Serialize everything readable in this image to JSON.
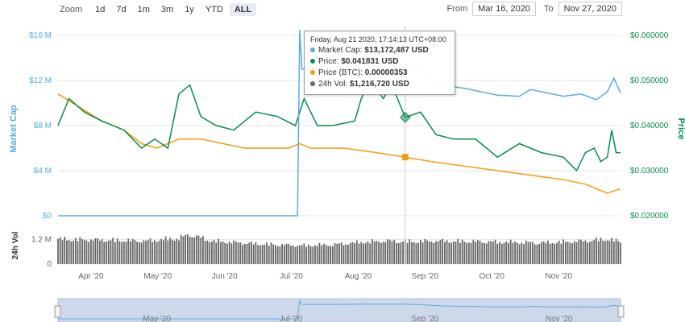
{
  "zoom": {
    "label": "Zoom",
    "buttons": [
      "1d",
      "7d",
      "1m",
      "3m",
      "1y",
      "YTD",
      "ALL"
    ],
    "active": "ALL"
  },
  "range": {
    "from_label": "From",
    "from": "Mar 16, 2020",
    "to_label": "To",
    "to": "Nov 27, 2020"
  },
  "tooltip": {
    "date": "Friday, Aug 21 2020, 17:14:13 UTC+08:00",
    "rows": [
      {
        "label": "Market Cap:",
        "value": "$13,172,487 USD",
        "color": "#5aabe0"
      },
      {
        "label": "Price:",
        "value": "$0.041831 USD",
        "color": "#0b8a4e"
      },
      {
        "label": "Price (BTC):",
        "value": "0.00000353",
        "color": "#f29c12"
      },
      {
        "label": "24h Vol:",
        "value": "$1,216,720 USD",
        "color": "#666666"
      }
    ]
  },
  "colors": {
    "market_cap": "#5aabe0",
    "price": "#0b8a4e",
    "price_btc": "#f29c12",
    "volume": "#666666",
    "navigator_fill": "#ced8eb"
  },
  "chart_data": {
    "type": "line",
    "x_labels": [
      "Apr '20",
      "May '20",
      "Jun '20",
      "Jul '20",
      "Aug '20",
      "Sep '20",
      "Oct '20",
      "Nov '20"
    ],
    "navigator_labels": [
      "May '20",
      "Jul '20",
      "Sep '20",
      "Nov '20"
    ],
    "left_axis": {
      "label": "Market Cap",
      "ticks": [
        "$0",
        "$4 M",
        "$8 M",
        "$12 M",
        "$16 M"
      ],
      "range": [
        0,
        16000000
      ]
    },
    "right_axis": {
      "label": "Price",
      "ticks": [
        "$0.020000",
        "$0.030000",
        "$0.040000",
        "$0.050000",
        "$0.060000"
      ],
      "range": [
        0.02,
        0.06
      ]
    },
    "volume_axis": {
      "label": "24h Vol",
      "ticks": [
        "0",
        "0.6 M",
        "1.2 M"
      ],
      "range": [
        0,
        1800000
      ]
    },
    "x_range_days": [
      0,
      256
    ],
    "series": [
      {
        "name": "Market Cap",
        "points": [
          [
            0,
            0
          ],
          [
            100,
            0
          ],
          [
            109,
            0
          ],
          [
            110,
            16500000
          ],
          [
            111,
            13000000
          ],
          [
            125,
            13000000
          ],
          [
            140,
            13200000
          ],
          [
            158,
            13172487
          ],
          [
            165,
            12800000
          ],
          [
            175,
            11600000
          ],
          [
            185,
            11300000
          ],
          [
            200,
            10700000
          ],
          [
            210,
            10600000
          ],
          [
            215,
            11200000
          ],
          [
            230,
            10600000
          ],
          [
            238,
            10800000
          ],
          [
            245,
            10300000
          ],
          [
            250,
            11000000
          ],
          [
            253,
            12200000
          ],
          [
            256,
            10900000
          ]
        ]
      },
      {
        "name": "Price",
        "points": [
          [
            0,
            0.04
          ],
          [
            5,
            0.046
          ],
          [
            12,
            0.043
          ],
          [
            20,
            0.041
          ],
          [
            30,
            0.039
          ],
          [
            38,
            0.035
          ],
          [
            44,
            0.037
          ],
          [
            50,
            0.035
          ],
          [
            55,
            0.047
          ],
          [
            60,
            0.049
          ],
          [
            65,
            0.042
          ],
          [
            72,
            0.04
          ],
          [
            80,
            0.039
          ],
          [
            90,
            0.043
          ],
          [
            100,
            0.042
          ],
          [
            108,
            0.04
          ],
          [
            112,
            0.046
          ],
          [
            118,
            0.04
          ],
          [
            125,
            0.04
          ],
          [
            135,
            0.041
          ],
          [
            138,
            0.046
          ],
          [
            142,
            0.05
          ],
          [
            148,
            0.046
          ],
          [
            152,
            0.049
          ],
          [
            158,
            0.0418
          ],
          [
            165,
            0.043
          ],
          [
            172,
            0.038
          ],
          [
            180,
            0.037
          ],
          [
            190,
            0.037
          ],
          [
            200,
            0.033
          ],
          [
            210,
            0.036
          ],
          [
            220,
            0.034
          ],
          [
            230,
            0.033
          ],
          [
            236,
            0.03
          ],
          [
            240,
            0.034
          ],
          [
            244,
            0.035
          ],
          [
            247,
            0.032
          ],
          [
            250,
            0.033
          ],
          [
            252,
            0.039
          ],
          [
            254,
            0.034
          ],
          [
            256,
            0.034
          ]
        ]
      },
      {
        "name": "Price (BTC)",
        "points": [
          [
            0,
            0.047
          ],
          [
            10,
            0.044
          ],
          [
            20,
            0.041
          ],
          [
            30,
            0.039
          ],
          [
            38,
            0.036
          ],
          [
            45,
            0.035
          ],
          [
            55,
            0.037
          ],
          [
            65,
            0.037
          ],
          [
            75,
            0.036
          ],
          [
            85,
            0.035
          ],
          [
            95,
            0.035
          ],
          [
            105,
            0.035
          ],
          [
            110,
            0.036
          ],
          [
            115,
            0.035
          ],
          [
            130,
            0.035
          ],
          [
            145,
            0.034
          ],
          [
            158,
            0.033
          ],
          [
            170,
            0.032
          ],
          [
            185,
            0.031
          ],
          [
            200,
            0.03
          ],
          [
            215,
            0.029
          ],
          [
            230,
            0.028
          ],
          [
            240,
            0.027
          ],
          [
            245,
            0.026
          ],
          [
            250,
            0.025
          ],
          [
            256,
            0.026
          ]
        ]
      },
      {
        "name": "24h Vol",
        "points": [
          [
            0,
            1350000
          ],
          [
            20,
            1300000
          ],
          [
            40,
            1250000
          ],
          [
            55,
            1400000
          ],
          [
            60,
            1600000
          ],
          [
            70,
            1250000
          ],
          [
            90,
            1100000
          ],
          [
            100,
            1050000
          ],
          [
            110,
            1000000
          ],
          [
            125,
            1050000
          ],
          [
            140,
            1200000
          ],
          [
            150,
            1250000
          ],
          [
            158,
            1216720
          ],
          [
            175,
            1250000
          ],
          [
            200,
            1200000
          ],
          [
            220,
            1150000
          ],
          [
            240,
            1250000
          ],
          [
            250,
            1350000
          ],
          [
            256,
            1200000
          ]
        ]
      }
    ],
    "hover": {
      "x": 158,
      "market_cap": 13172487,
      "price": 0.041831,
      "price_btc": 3.53e-06
    }
  }
}
